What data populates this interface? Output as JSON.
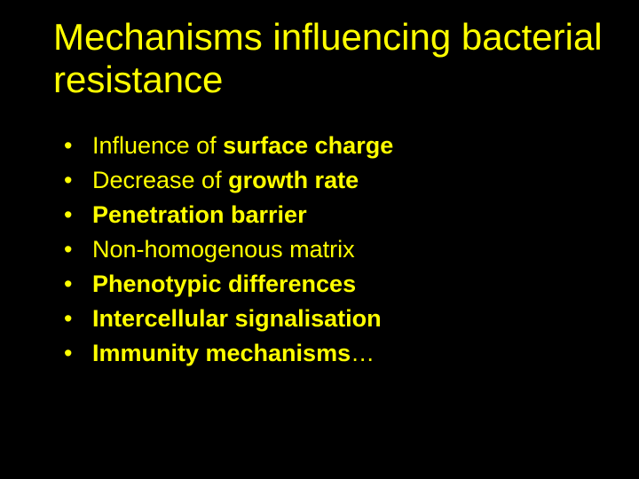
{
  "slide": {
    "background_color": "#000000",
    "text_color": "#ffff00",
    "title": "Mechanisms influencing bacterial resistance",
    "title_fontsize": 42,
    "bullet_fontsize": 27,
    "font_family": "Verdana",
    "bullets": [
      {
        "prefix": "Influence of ",
        "bold": "surface charge",
        "suffix": ""
      },
      {
        "prefix": "Decrease of ",
        "bold": "growth rate",
        "suffix": ""
      },
      {
        "prefix": "",
        "bold": "Penetration barrier",
        "suffix": ""
      },
      {
        "prefix": "Non-homogenous matrix",
        "bold": "",
        "suffix": ""
      },
      {
        "prefix": "",
        "bold": "Phenotypic differences",
        "suffix": ""
      },
      {
        "prefix": "",
        "bold": "Intercellular signalisation",
        "suffix": ""
      },
      {
        "prefix": "",
        "bold": "Immunity mechanisms",
        "suffix": "…"
      }
    ]
  }
}
